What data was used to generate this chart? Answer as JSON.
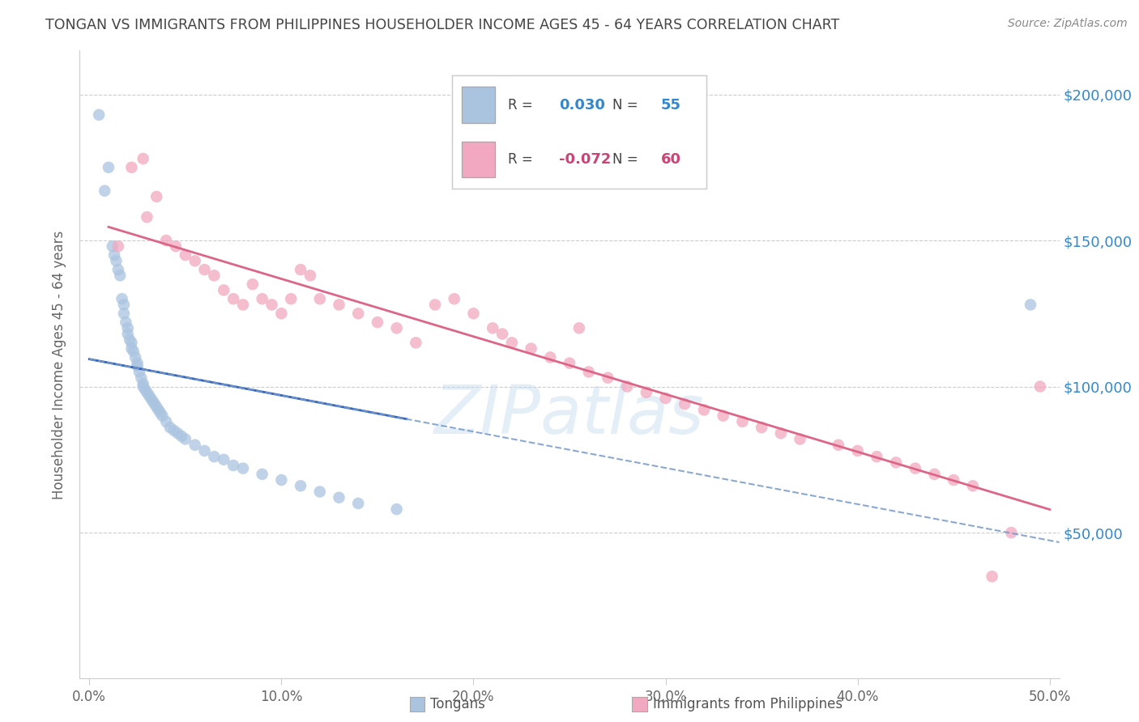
{
  "title": "TONGAN VS IMMIGRANTS FROM PHILIPPINES HOUSEHOLDER INCOME AGES 45 - 64 YEARS CORRELATION CHART",
  "source": "Source: ZipAtlas.com",
  "ylabel": "Householder Income Ages 45 - 64 years",
  "xlabel_ticks": [
    "0.0%",
    "10.0%",
    "20.0%",
    "30.0%",
    "40.0%",
    "50.0%"
  ],
  "xlabel_vals": [
    0.0,
    0.1,
    0.2,
    0.3,
    0.4,
    0.5
  ],
  "ytick_labels": [
    "$50,000",
    "$100,000",
    "$150,000",
    "$200,000"
  ],
  "ytick_vals": [
    50000,
    100000,
    150000,
    200000
  ],
  "ylim": [
    0,
    215000
  ],
  "xlim": [
    -0.005,
    0.505
  ],
  "blue_color": "#aac4e0",
  "pink_color": "#f2a8c0",
  "blue_line_color": "#3366bb",
  "pink_line_color": "#dd6688",
  "blue_dash_color": "#7799cc",
  "grid_color": "#cccccc",
  "right_axis_color": "#3388cc",
  "title_color": "#444444",
  "source_color": "#888888",
  "ylabel_color": "#666666",
  "xtick_color": "#666666",
  "watermark_text": "ZIPatlas",
  "watermark_color": "#c8dff0",
  "watermark_alpha": 0.5,
  "legend_R1": "0.030",
  "legend_N1": "55",
  "legend_R2": "-0.072",
  "legend_N2": "60",
  "legend_color_R1": "#3388cc",
  "legend_color_R2": "#cc4477",
  "legend_color_N1": "#3388cc",
  "legend_color_N2": "#cc4477",
  "bottom_legend_tongans": "Tongans",
  "bottom_legend_philippines": "Immigrants from Philippines",
  "tongans_x": [
    0.005,
    0.008,
    0.01,
    0.012,
    0.013,
    0.014,
    0.015,
    0.016,
    0.017,
    0.018,
    0.018,
    0.019,
    0.02,
    0.02,
    0.021,
    0.022,
    0.022,
    0.023,
    0.024,
    0.025,
    0.025,
    0.026,
    0.027,
    0.028,
    0.028,
    0.029,
    0.03,
    0.031,
    0.032,
    0.033,
    0.034,
    0.035,
    0.036,
    0.037,
    0.038,
    0.04,
    0.042,
    0.044,
    0.046,
    0.048,
    0.05,
    0.055,
    0.06,
    0.065,
    0.07,
    0.075,
    0.08,
    0.09,
    0.1,
    0.11,
    0.12,
    0.13,
    0.14,
    0.16,
    0.49
  ],
  "tongans_y": [
    193000,
    167000,
    175000,
    148000,
    145000,
    143000,
    140000,
    138000,
    130000,
    128000,
    125000,
    122000,
    120000,
    118000,
    116000,
    115000,
    113000,
    112000,
    110000,
    108000,
    107000,
    105000,
    103000,
    101000,
    100000,
    99000,
    98000,
    97000,
    96000,
    95000,
    94000,
    93000,
    92000,
    91000,
    90000,
    88000,
    86000,
    85000,
    84000,
    83000,
    82000,
    80000,
    78000,
    76000,
    75000,
    73000,
    72000,
    70000,
    68000,
    66000,
    64000,
    62000,
    60000,
    58000,
    128000
  ],
  "philippines_x": [
    0.015,
    0.022,
    0.028,
    0.03,
    0.035,
    0.04,
    0.045,
    0.05,
    0.055,
    0.06,
    0.065,
    0.07,
    0.075,
    0.08,
    0.085,
    0.09,
    0.095,
    0.1,
    0.105,
    0.11,
    0.115,
    0.12,
    0.13,
    0.14,
    0.15,
    0.16,
    0.17,
    0.18,
    0.19,
    0.2,
    0.21,
    0.215,
    0.22,
    0.23,
    0.24,
    0.25,
    0.255,
    0.26,
    0.27,
    0.28,
    0.29,
    0.3,
    0.31,
    0.32,
    0.33,
    0.34,
    0.35,
    0.36,
    0.37,
    0.39,
    0.4,
    0.41,
    0.42,
    0.43,
    0.44,
    0.45,
    0.46,
    0.47,
    0.48,
    0.495
  ],
  "philippines_y": [
    148000,
    175000,
    178000,
    158000,
    165000,
    150000,
    148000,
    145000,
    143000,
    140000,
    138000,
    133000,
    130000,
    128000,
    135000,
    130000,
    128000,
    125000,
    130000,
    140000,
    138000,
    130000,
    128000,
    125000,
    122000,
    120000,
    115000,
    128000,
    130000,
    125000,
    120000,
    118000,
    115000,
    113000,
    110000,
    108000,
    120000,
    105000,
    103000,
    100000,
    98000,
    96000,
    94000,
    92000,
    90000,
    88000,
    86000,
    84000,
    82000,
    80000,
    78000,
    76000,
    74000,
    72000,
    70000,
    68000,
    66000,
    35000,
    50000,
    100000
  ]
}
